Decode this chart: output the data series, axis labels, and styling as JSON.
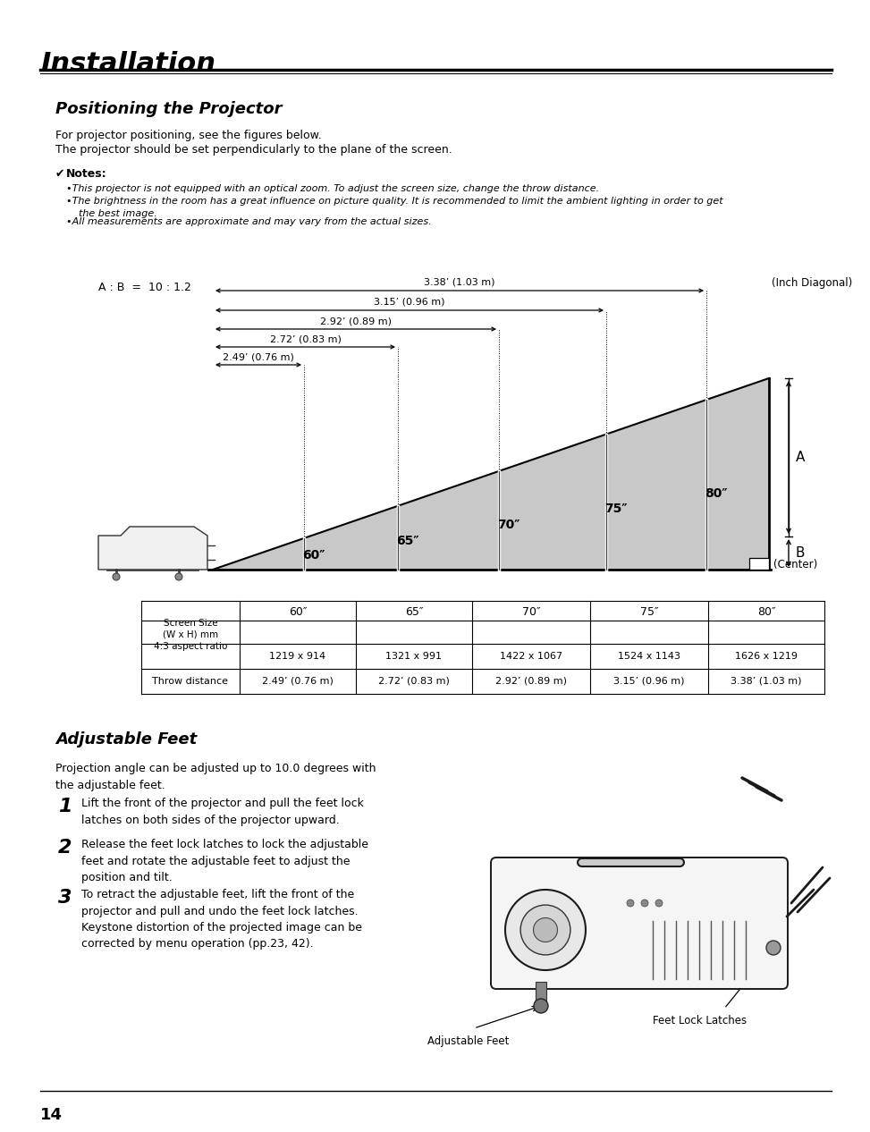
{
  "title": "Installation",
  "section1_title": "Positioning the Projector",
  "section1_intro_1": "For projector positioning, see the figures below.",
  "section1_intro_2": "The projector should be set perpendicularly to the plane of the screen.",
  "notes_header": "Notes:",
  "notes": [
    "This projector is not equipped with an optical zoom. To adjust the screen size, change the throw distance.",
    "The brightness in the room has a great influence on picture quality. It is recommended to limit the ambient lighting in order to get\n    the best image.",
    "All measurements are approximate and may vary from the actual sizes."
  ],
  "ratio_label": "A : B  =  10 : 1.2",
  "inch_diagonal": "(Inch Diagonal)",
  "center_label": "(Center)",
  "A_label": "A",
  "B_label": "B",
  "screen_sizes": [
    "60\"",
    "65\"",
    "70\"",
    "75\"",
    "80\""
  ],
  "throw_distances_arrows": [
    "2.49’ (0.76 m)",
    "2.72’ (0.83 m)",
    "2.92’ (0.89 m)",
    "3.15’ (0.96 m)",
    "3.38’ (1.03 m)"
  ],
  "wh_sizes": [
    "1219 x 914",
    "1321 x 991",
    "1422 x 1067",
    "1524 x 1143",
    "1626 x 1219"
  ],
  "throw_distances_table": [
    "2.49’ (0.76 m)",
    "2.72’ (0.83 m)",
    "2.92’ (0.89 m)",
    "3.15’ (0.96 m)",
    "3.38’ (1.03 m)"
  ],
  "section2_title": "Adjustable Feet",
  "section2_intro": "Projection angle can be adjusted up to 10.0 degrees with\nthe adjustable feet.",
  "steps": [
    [
      "1",
      "Lift the front of the projector and pull the feet lock\nlatches on both sides of the projector upward."
    ],
    [
      "2",
      "Release the feet lock latches to lock the adjustable\nfeet and rotate the adjustable feet to adjust the\nposition and tilt."
    ],
    [
      "3",
      "To retract the adjustable feet, lift the front of the\nprojector and pull and undo the feet lock latches.\nKeystone distortion of the projected image can be\ncorrected by menu operation (pp.23, 42)."
    ]
  ],
  "adj_feet_label": "Adjustable Feet",
  "feet_lock_label": "Feet Lock Latches",
  "page_number": "14",
  "bg_color": "#ffffff",
  "text_color": "#000000"
}
